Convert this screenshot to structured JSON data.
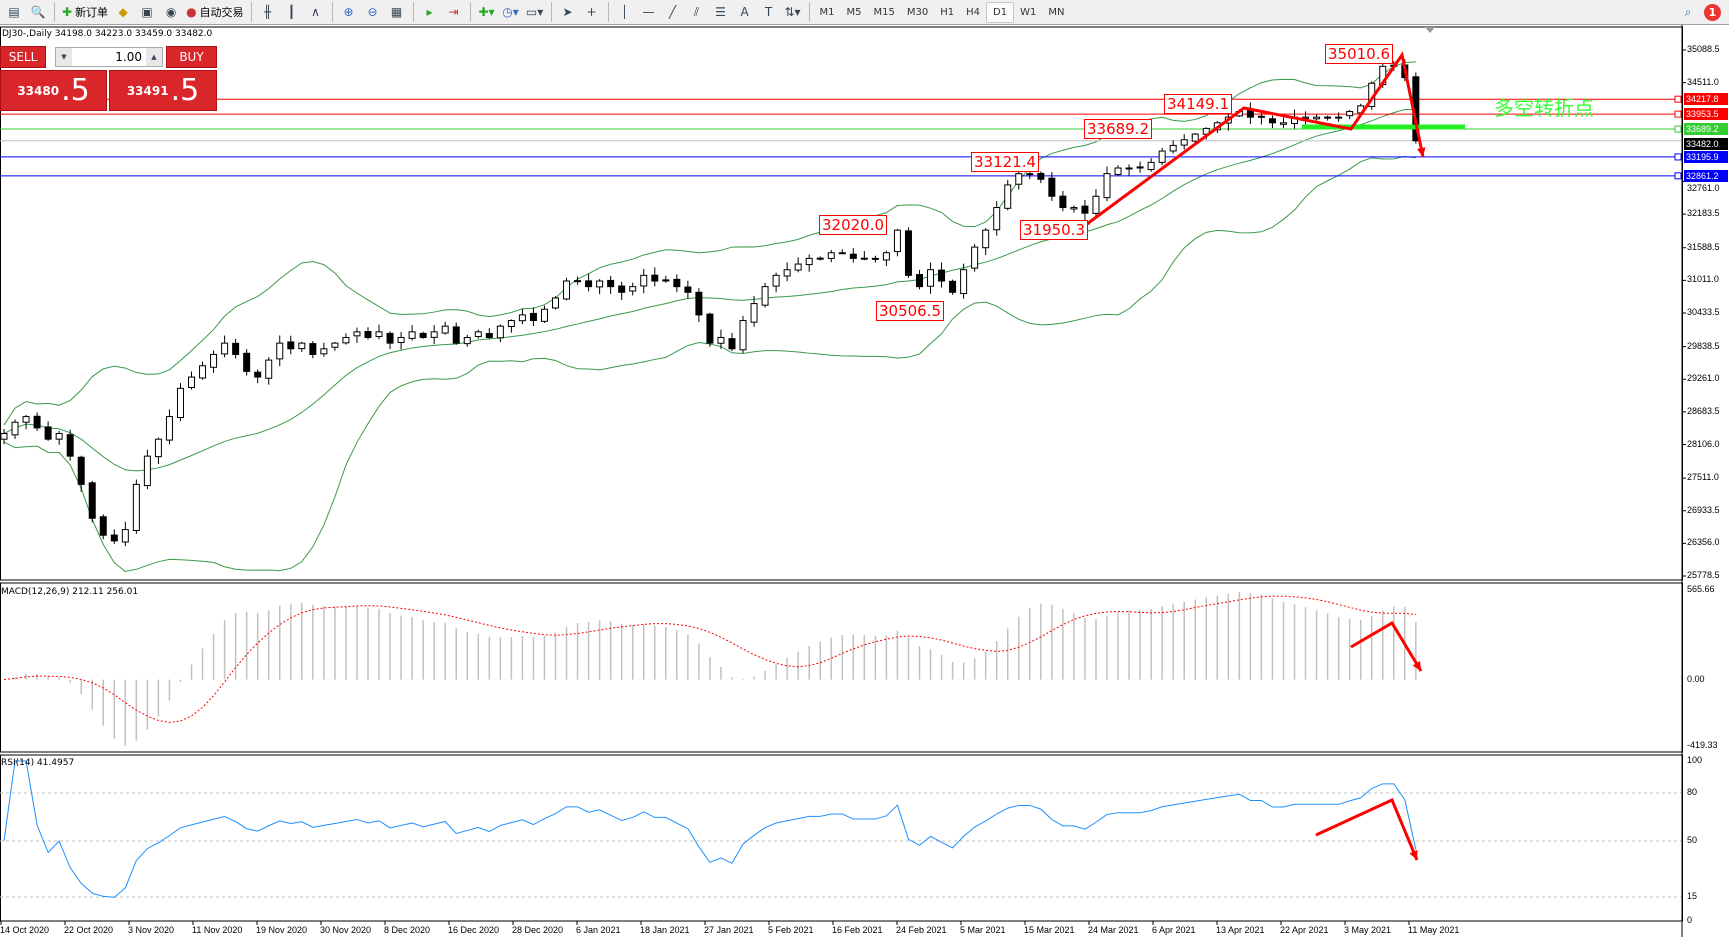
{
  "toolbar": {
    "new_order": "新订单",
    "auto_trading": "自动交易",
    "timeframes": [
      "M1",
      "M5",
      "M15",
      "M30",
      "H1",
      "H4",
      "D1",
      "W1",
      "MN"
    ],
    "active_timeframe": "D1",
    "notification_count": "1",
    "icons": [
      "new-chart-icon",
      "zoom-window-icon",
      "new-order-icon",
      "gold-icon",
      "terminal-icon",
      "signal-icon",
      "auto-trading-icon",
      "bar-chart-icon",
      "candlestick-icon",
      "line-chart-icon",
      "zoom-in-icon",
      "zoom-out-icon",
      "tile-windows-icon",
      "autoscroll-icon",
      "chart-shift-icon",
      "indicators-icon",
      "periods-icon",
      "templates-icon",
      "cursor-icon",
      "crosshair-icon",
      "vertical-line-icon",
      "horizontal-line-icon",
      "trendline-icon",
      "equidistant-channel-icon",
      "fibonacci-icon",
      "text-icon",
      "text-label-icon",
      "arrows-icon"
    ]
  },
  "chart": {
    "symbol_info": "DJ30-,Daily  34198.0 34223.0 33459.0 33482.0"
  },
  "trade_panel": {
    "sell_label": "SELL",
    "buy_label": "BUY",
    "lot": "1.00",
    "sell_price_main": "33480",
    "sell_price_big": ".5",
    "buy_price_main": "33491",
    "buy_price_big": ".5",
    "color": "#d8262b"
  },
  "price_axis": [
    "35088.5",
    "34511.0",
    "32761.0",
    "32183.5",
    "31588.5",
    "31011.0",
    "30433.5",
    "29838.5",
    "29261.0",
    "28683.5",
    "28106.0",
    "27511.0",
    "26933.5",
    "26356.0",
    "25778.5"
  ],
  "levels": [
    {
      "price": "34217.8",
      "color": "#ff0000"
    },
    {
      "price": "33953.5",
      "color": "#ff0000"
    },
    {
      "price": "33689.2",
      "color": "#33cc33"
    },
    {
      "price": "33482.0",
      "color": "#000000",
      "kind": "bid"
    },
    {
      "price": "33195.9",
      "color": "#0000ff"
    },
    {
      "price": "32861.2",
      "color": "#0000ff"
    }
  ],
  "labels": [
    "35010.6",
    "34149.1",
    "33689.2",
    "33121.4",
    "32020.0",
    "31950.3",
    "30506.5"
  ],
  "annotation": "多空转折点",
  "macd": {
    "label": "MACD(12,26,9) 212.11 256.01",
    "axis": [
      "565.66",
      "0.00",
      "-419.33"
    ]
  },
  "rsi": {
    "label": "RSI(14) 41.4957",
    "axis": [
      "100",
      "80",
      "50",
      "15",
      "0"
    ]
  },
  "dates": [
    "14 Oct 2020",
    "22 Oct 2020",
    "3 Nov 2020",
    "11 Nov 2020",
    "19 Nov 2020",
    "30 Nov 2020",
    "8 Dec 2020",
    "16 Dec 2020",
    "28 Dec 2020",
    "6 Jan 2021",
    "18 Jan 2021",
    "27 Jan 2021",
    "5 Feb 2021",
    "16 Feb 2021",
    "24 Feb 2021",
    "5 Mar 2021",
    "15 Mar 2021",
    "24 Mar 2021",
    "6 Apr 2021",
    "13 Apr 2021",
    "22 Apr 2021",
    "3 May 2021",
    "11 May 2021"
  ],
  "chart_data": {
    "type": "candlestick",
    "indicators": [
      "Bollinger Bands(20,2)",
      "MACD(12,26,9)",
      "RSI(14)"
    ],
    "ylim": [
      25778.5,
      35088.5
    ],
    "closes": [
      28300,
      28500,
      28600,
      28400,
      28200,
      28300,
      27900,
      27400,
      26800,
      26500,
      26400,
      26600,
      27400,
      27900,
      28200,
      28600,
      29100,
      29300,
      29500,
      29700,
      29900,
      29700,
      29400,
      29300,
      29600,
      29900,
      29800,
      29900,
      29700,
      29800,
      29900,
      30000,
      30100,
      30000,
      30100,
      29900,
      30000,
      30100,
      30000,
      30100,
      30200,
      29900,
      30000,
      30100,
      30000,
      30200,
      30300,
      30400,
      30300,
      30500,
      30700,
      31000,
      31000,
      30900,
      31000,
      30900,
      30800,
      30900,
      31100,
      31000,
      31000,
      30900,
      30800,
      30400,
      29900,
      30000,
      29800,
      30300,
      30600,
      30900,
      31100,
      31200,
      31300,
      31400,
      31400,
      31500,
      31500,
      31400,
      31400,
      31400,
      31500,
      31900,
      31100,
      30900,
      31200,
      31000,
      30800,
      31200,
      31600,
      31900,
      32300,
      32700,
      32900,
      32900,
      32800,
      32500,
      32300,
      32300,
      32200,
      32500,
      32900,
      33000,
      33000,
      33000,
      33100,
      33300,
      33400,
      33500,
      33600,
      33700,
      33800,
      33900,
      34000,
      33900,
      33900,
      33800,
      33800,
      33900,
      33900,
      33900,
      33900,
      33900,
      34000,
      34100,
      34500,
      34800,
      34800,
      34600,
      33482
    ]
  }
}
